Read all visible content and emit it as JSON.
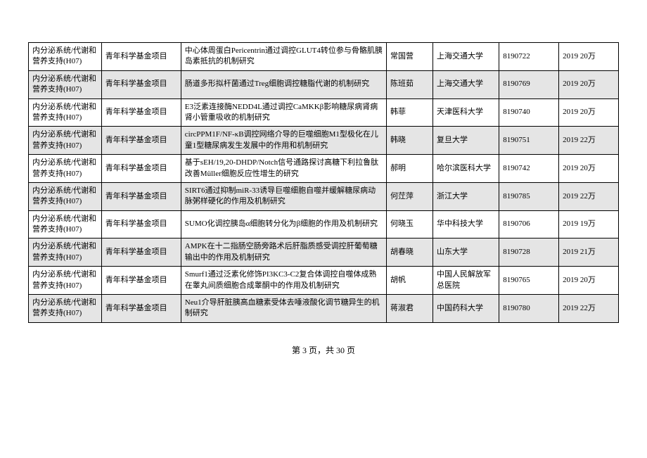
{
  "table": {
    "columns": [
      {
        "key": "category",
        "cls": "col-category"
      },
      {
        "key": "type",
        "cls": "col-type"
      },
      {
        "key": "title",
        "cls": "col-title"
      },
      {
        "key": "person",
        "cls": "col-person"
      },
      {
        "key": "institution",
        "cls": "col-inst"
      },
      {
        "key": "id",
        "cls": "col-id"
      },
      {
        "key": "year_amount",
        "cls": "col-year"
      }
    ],
    "row_colors": {
      "odd": "#ffffff",
      "even": "#e5e5e5"
    },
    "border_color": "#000000",
    "font_size": 11,
    "rows": [
      {
        "category": "内分泌系统/代谢和营养支持(H07)",
        "type": "青年科学基金项目",
        "title": "中心体周蛋白Pericentrin通过调控GLUT4转位参与骨骼肌胰岛素抵抗的机制研究",
        "person": "常国营",
        "institution": "上海交通大学",
        "id": "8190722",
        "year_amount": "2019 20万"
      },
      {
        "category": "内分泌系统/代谢和营养支持(H07)",
        "type": "青年科学基金项目",
        "title": "肠道多形拟杆菌通过Treg细胞调控糖脂代谢的机制研究",
        "person": "陈班茹",
        "institution": "上海交通大学",
        "id": "8190769",
        "year_amount": "2019 20万"
      },
      {
        "category": "内分泌系统/代谢和营养支持(H07)",
        "type": "青年科学基金项目",
        "title": "E3泛素连接酶NEDD4L通过调控CaMKKβ影响糖尿病肾病肾小管重吸收的机制研究",
        "person": "韩菲",
        "institution": "天津医科大学",
        "id": "8190740",
        "year_amount": "2019 20万"
      },
      {
        "category": "内分泌系统/代谢和营养支持(H07)",
        "type": "青年科学基金项目",
        "title": "circPPM1F/NF-κB调控网络介导的巨噬细胞M1型极化在儿童1型糖尿病发生发展中的作用和机制研究",
        "person": "韩晓",
        "institution": "复旦大学",
        "id": "8190751",
        "year_amount": "2019 22万"
      },
      {
        "category": "内分泌系统/代谢和营养支持(H07)",
        "type": "青年科学基金项目",
        "title": "基于sEH/19,20-DHDP/Notch信号通路探讨高糖下利拉鲁肽改善Müller细胞反应性增生的研究",
        "person": "郝明",
        "institution": "哈尔滨医科大学",
        "id": "8190742",
        "year_amount": "2019 20万"
      },
      {
        "category": "内分泌系统/代谢和营养支持(H07)",
        "type": "青年科学基金项目",
        "title": "SIRT6通过抑制miR-33诱导巨噬细胞自噬并缓解糖尿病动脉粥样硬化的作用及机制研究",
        "person": "何茳萍",
        "institution": "浙江大学",
        "id": "8190785",
        "year_amount": "2019 22万"
      },
      {
        "category": "内分泌系统/代谢和营养支持(H07)",
        "type": "青年科学基金项目",
        "title": "SUMO化调控胰岛α细胞转分化为β细胞的作用及机制研究",
        "person": "何晓玉",
        "institution": "华中科技大学",
        "id": "8190706",
        "year_amount": "2019 19万"
      },
      {
        "category": "内分泌系统/代谢和营养支持(H07)",
        "type": "青年科学基金项目",
        "title": "AMPK在十二指肠空肠旁路术后肝脂质感受调控肝葡萄糖输出中的作用及机制研究",
        "person": "胡春晓",
        "institution": "山东大学",
        "id": "8190728",
        "year_amount": "2019 21万"
      },
      {
        "category": "内分泌系统/代谢和营养支持(H07)",
        "type": "青年科学基金项目",
        "title": "Smurf1通过泛素化修饰PI3KC3-C2复合体调控自噬体成熟在睾丸间质细胞合成睾酮中的作用及机制研究",
        "person": "胡帆",
        "institution": "中国人民解放军总医院",
        "id": "8190765",
        "year_amount": "2019 20万"
      },
      {
        "category": "内分泌系统/代谢和营养支持(H07)",
        "type": "青年科学基金项目",
        "title": "Neu1介导肝脏胰高血糖素受体去唾液酸化调节糖异生的机制研究",
        "person": "蒋淑君",
        "institution": "中国药科大学",
        "id": "8190780",
        "year_amount": "2019 22万"
      }
    ]
  },
  "pager": {
    "text": "第 3 页，共 30 页"
  }
}
